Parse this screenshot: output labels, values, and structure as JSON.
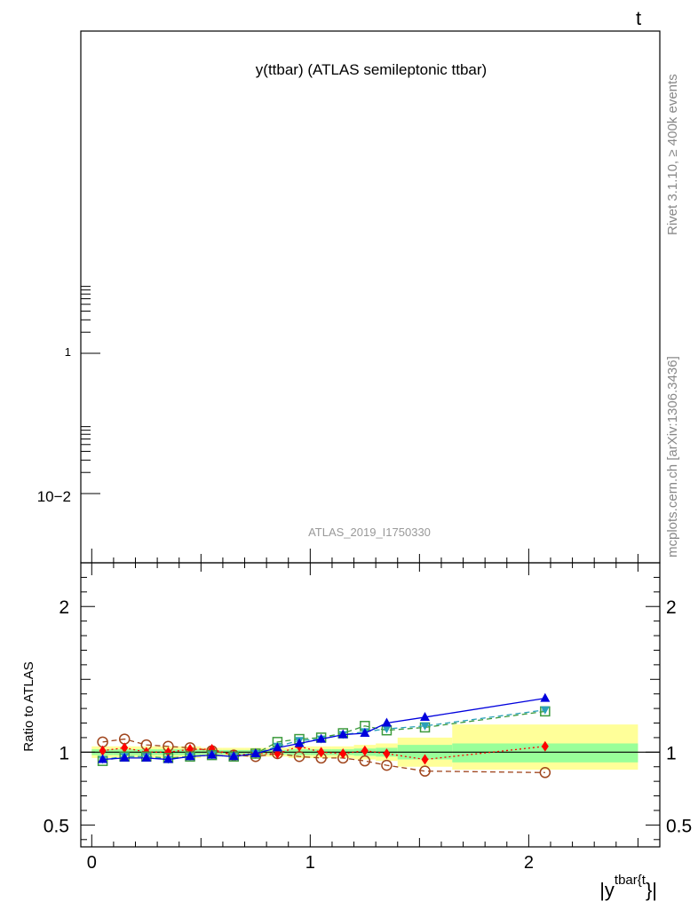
{
  "corner_label": "t",
  "side_text": {
    "rivet": "Rivet 3.1.10, ≥ 400k events",
    "mcplots": "mcplots.cern.ch [arXiv:1306.3436]"
  },
  "top_panel": {
    "title": "y(ttbar) (ATLAS semileptonic ttbar)",
    "analysis_id": "ATLAS_2019_I1750330",
    "y_ticks": [
      "1",
      "10−2"
    ]
  },
  "colors": {
    "band_outer": "#ffff99",
    "band_inner": "#99ff99",
    "series_brown": "#a0461e",
    "series_red": "#ff0000",
    "series_blue": "#0000dd",
    "series_green": "#3c9a3c",
    "series_teal": "#2aa0b8"
  },
  "chart_data": {
    "type": "scatter",
    "ylabel": "Ratio to ATLAS",
    "xlabel_parts": {
      "main": "|y",
      "sup": "tbar{t",
      "end": "}|"
    },
    "xlim": [
      -0.05,
      2.6
    ],
    "ylim": [
      0.35,
      2.3
    ],
    "x_ticks": [
      0,
      1,
      2
    ],
    "y_ticks": [
      0.5,
      1,
      2
    ],
    "y_tick_labels": [
      "0.5",
      "1",
      "2"
    ],
    "reference_line": 1.0,
    "uncertainty_bins": [
      {
        "x0": 0.0,
        "x1": 0.1,
        "outer": [
          0.96,
          1.04
        ],
        "inner": [
          0.98,
          1.02
        ]
      },
      {
        "x0": 0.1,
        "x1": 0.2,
        "outer": [
          0.96,
          1.04
        ],
        "inner": [
          0.98,
          1.02
        ]
      },
      {
        "x0": 0.2,
        "x1": 0.3,
        "outer": [
          0.96,
          1.04
        ],
        "inner": [
          0.98,
          1.02
        ]
      },
      {
        "x0": 0.3,
        "x1": 0.4,
        "outer": [
          0.96,
          1.04
        ],
        "inner": [
          0.98,
          1.02
        ]
      },
      {
        "x0": 0.4,
        "x1": 0.5,
        "outer": [
          0.96,
          1.04
        ],
        "inner": [
          0.98,
          1.02
        ]
      },
      {
        "x0": 0.5,
        "x1": 0.6,
        "outer": [
          0.97,
          1.03
        ],
        "inner": [
          0.985,
          1.015
        ]
      },
      {
        "x0": 0.6,
        "x1": 0.7,
        "outer": [
          0.97,
          1.03
        ],
        "inner": [
          0.985,
          1.015
        ]
      },
      {
        "x0": 0.7,
        "x1": 0.8,
        "outer": [
          0.97,
          1.03
        ],
        "inner": [
          0.985,
          1.015
        ]
      },
      {
        "x0": 0.8,
        "x1": 0.9,
        "outer": [
          0.97,
          1.03
        ],
        "inner": [
          0.985,
          1.015
        ]
      },
      {
        "x0": 0.9,
        "x1": 1.0,
        "outer": [
          0.96,
          1.04
        ],
        "inner": [
          0.98,
          1.02
        ]
      },
      {
        "x0": 1.0,
        "x1": 1.1,
        "outer": [
          0.96,
          1.04
        ],
        "inner": [
          0.98,
          1.02
        ]
      },
      {
        "x0": 1.1,
        "x1": 1.2,
        "outer": [
          0.96,
          1.04
        ],
        "inner": [
          0.98,
          1.02
        ]
      },
      {
        "x0": 1.2,
        "x1": 1.3,
        "outer": [
          0.95,
          1.05
        ],
        "inner": [
          0.975,
          1.025
        ]
      },
      {
        "x0": 1.3,
        "x1": 1.4,
        "outer": [
          0.94,
          1.06
        ],
        "inner": [
          0.97,
          1.03
        ]
      },
      {
        "x0": 1.4,
        "x1": 1.65,
        "outer": [
          0.9,
          1.1
        ],
        "inner": [
          0.95,
          1.05
        ]
      },
      {
        "x0": 1.65,
        "x1": 2.5,
        "outer": [
          0.88,
          1.19
        ],
        "inner": [
          0.93,
          1.06
        ]
      }
    ],
    "series": [
      {
        "color_key": "series_brown",
        "marker": "open-circle",
        "line": "dashed",
        "x": [
          0.05,
          0.15,
          0.25,
          0.35,
          0.45,
          0.55,
          0.65,
          0.75,
          0.85,
          0.95,
          1.05,
          1.15,
          1.25,
          1.35,
          1.525,
          2.075
        ],
        "y": [
          1.07,
          1.09,
          1.05,
          1.04,
          1.03,
          1.01,
          0.98,
          0.97,
          0.99,
          0.97,
          0.96,
          0.96,
          0.94,
          0.91,
          0.87,
          0.86
        ]
      },
      {
        "color_key": "series_red",
        "marker": "diamond",
        "line": "dotted",
        "x": [
          0.05,
          0.15,
          0.25,
          0.35,
          0.45,
          0.55,
          0.65,
          0.75,
          0.85,
          0.95,
          1.05,
          1.15,
          1.25,
          1.35,
          1.525,
          2.075
        ],
        "y": [
          1.01,
          1.03,
          1.0,
          1.0,
          1.02,
          1.02,
          0.98,
          0.99,
          0.99,
          1.04,
          1.0,
          0.99,
          1.01,
          0.99,
          0.95,
          1.04
        ]
      },
      {
        "color_key": "series_green",
        "marker": "open-square",
        "line": "dashed",
        "x": [
          0.05,
          0.15,
          0.25,
          0.35,
          0.45,
          0.55,
          0.65,
          0.75,
          0.85,
          0.95,
          1.05,
          1.15,
          1.25,
          1.35,
          1.525,
          2.075
        ],
        "y": [
          0.94,
          0.97,
          0.97,
          0.96,
          0.97,
          0.98,
          0.97,
          0.99,
          1.07,
          1.09,
          1.1,
          1.13,
          1.18,
          1.15,
          1.17,
          1.28
        ]
      },
      {
        "color_key": "series_teal",
        "marker": "inverted-triangle",
        "line": "dashed",
        "x": [
          0.05,
          0.15,
          0.25,
          0.35,
          0.45,
          0.55,
          0.65,
          0.75,
          0.85,
          0.95,
          1.05,
          1.15,
          1.25,
          1.35,
          1.525,
          2.075
        ],
        "y": [
          0.95,
          0.97,
          0.97,
          0.95,
          0.97,
          0.98,
          0.97,
          0.99,
          1.04,
          1.08,
          1.09,
          1.12,
          1.14,
          1.16,
          1.18,
          1.29
        ]
      },
      {
        "color_key": "series_blue",
        "marker": "triangle",
        "line": "solid",
        "x": [
          0.05,
          0.15,
          0.25,
          0.35,
          0.45,
          0.55,
          0.65,
          0.75,
          0.85,
          0.95,
          1.05,
          1.15,
          1.25,
          1.35,
          1.525,
          2.075
        ],
        "y": [
          0.95,
          0.96,
          0.96,
          0.95,
          0.97,
          0.98,
          0.97,
          0.99,
          1.03,
          1.06,
          1.09,
          1.12,
          1.13,
          1.2,
          1.24,
          1.37
        ]
      }
    ]
  }
}
